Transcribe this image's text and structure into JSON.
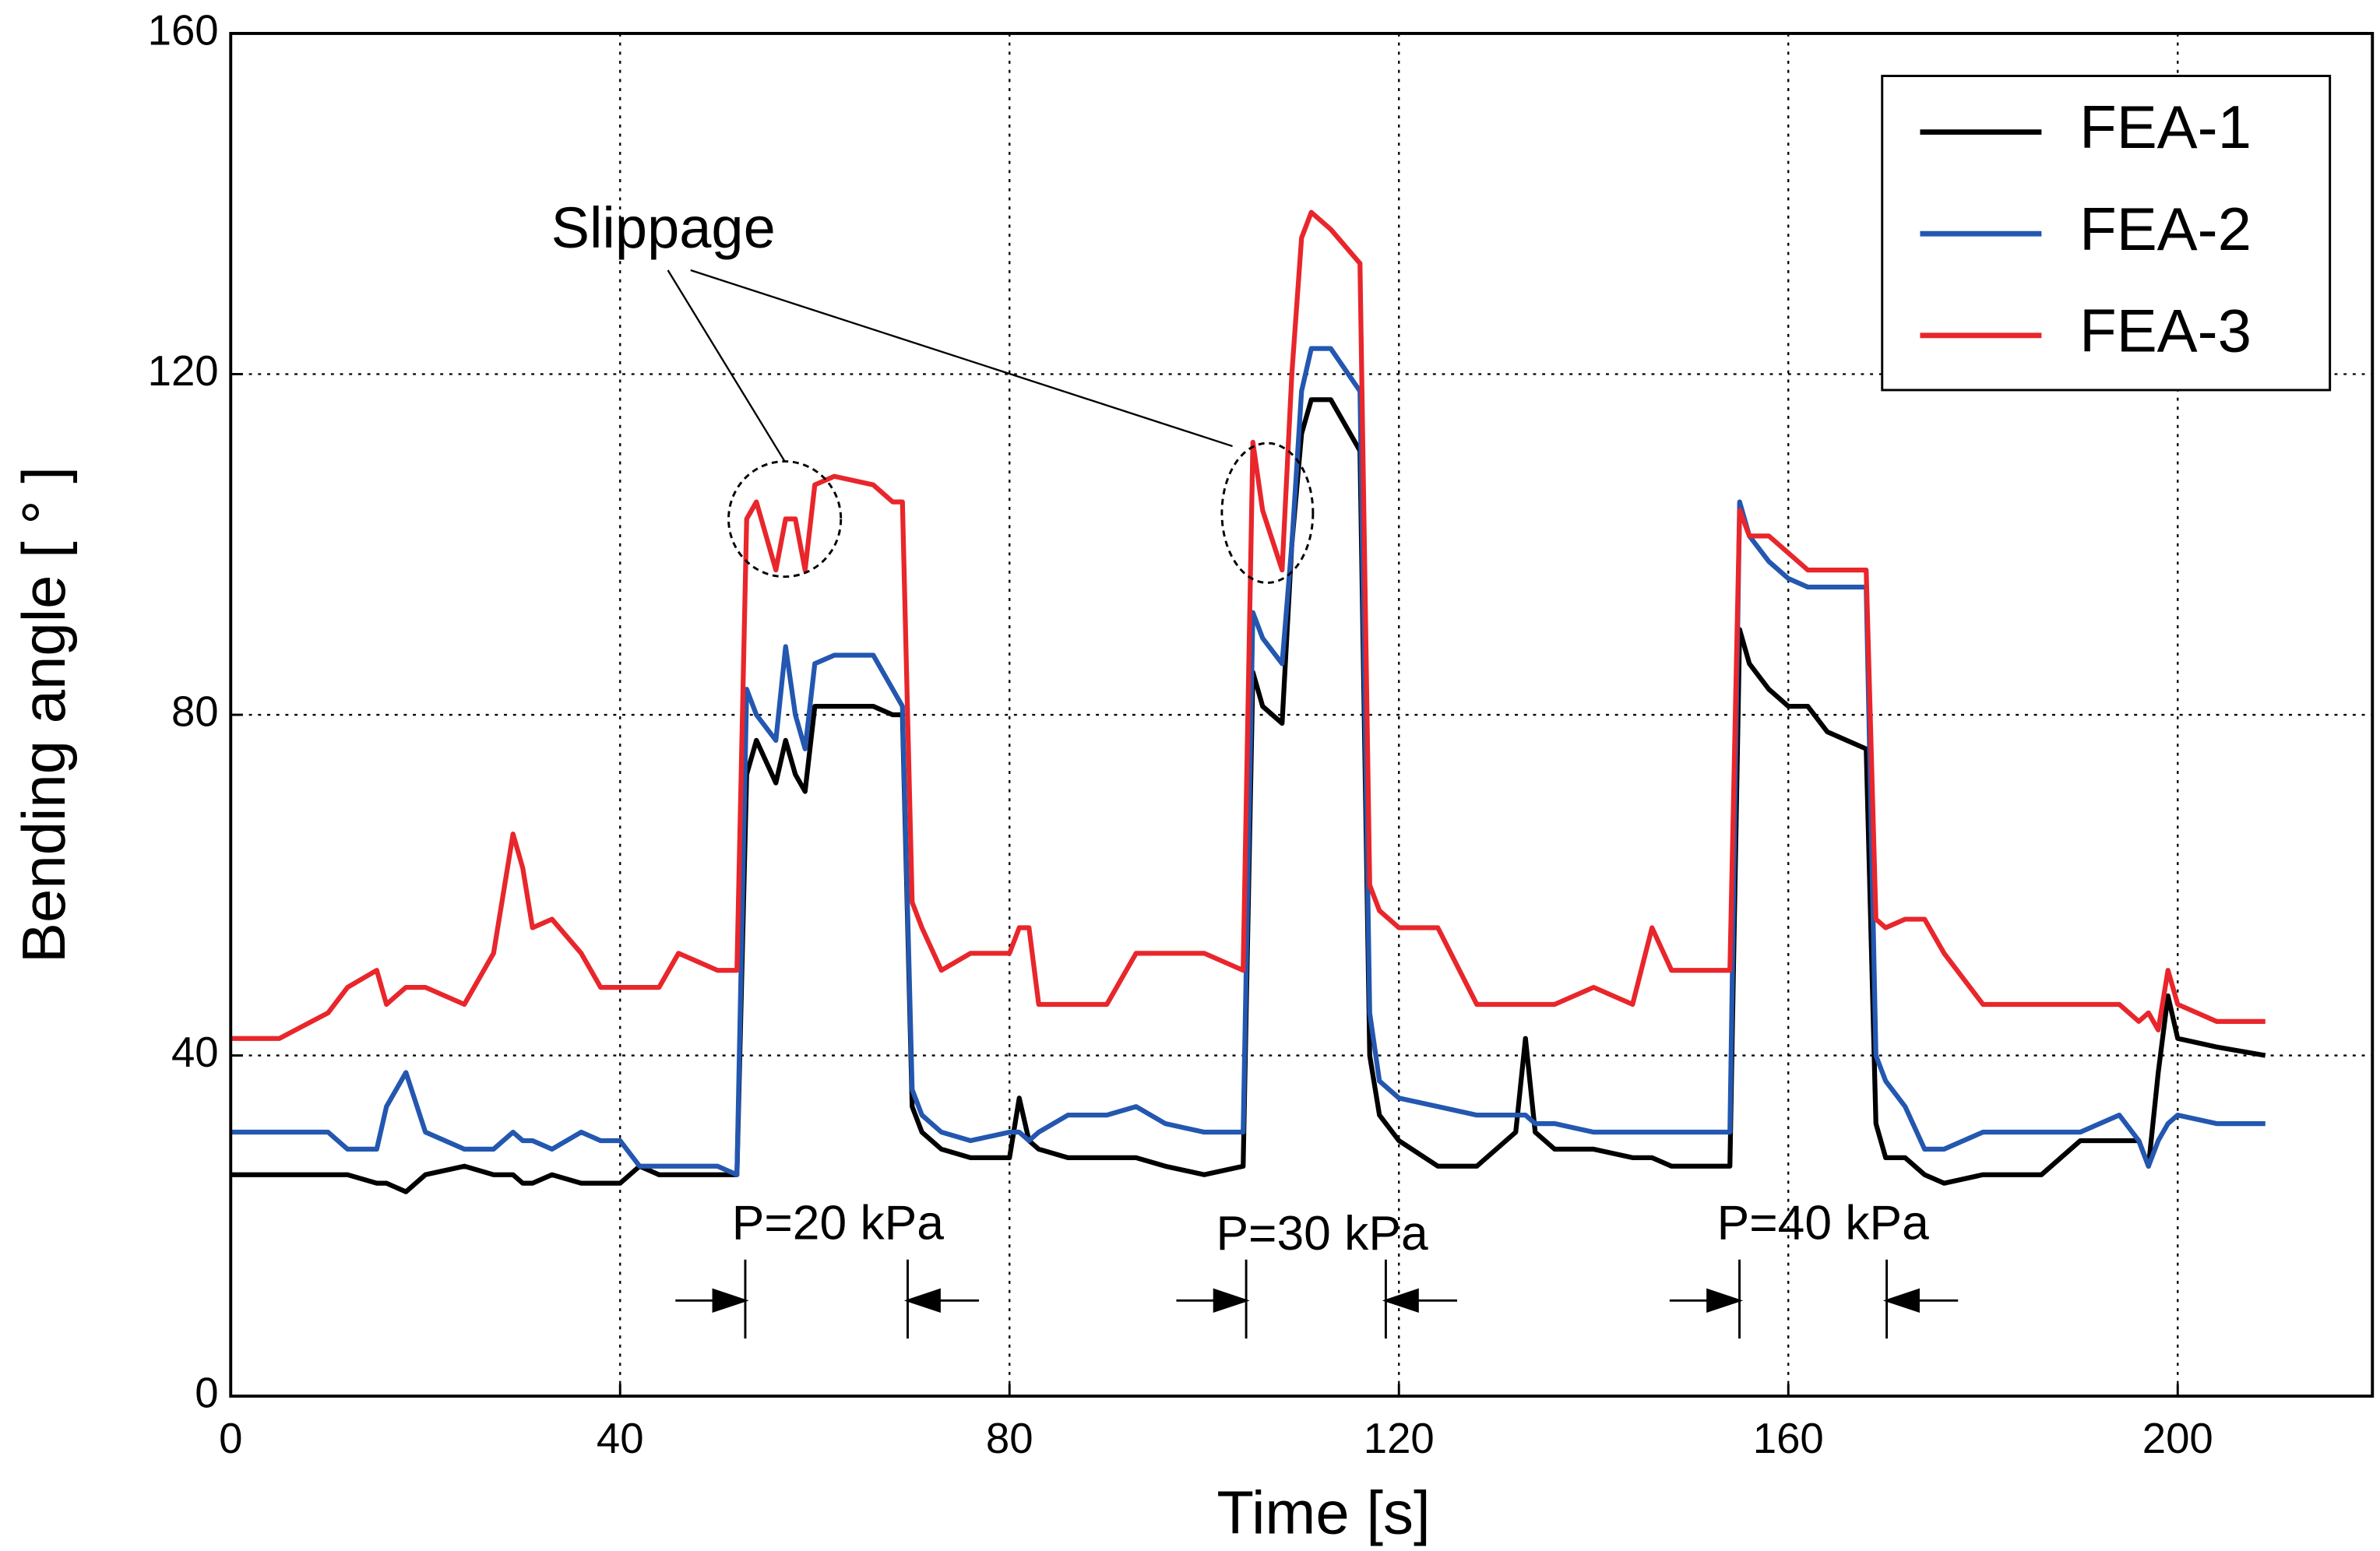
{
  "chart_data": {
    "type": "line",
    "xlabel": "Time [s]",
    "ylabel": "Bending angle [ ° ]",
    "xlim": [
      0,
      220
    ],
    "ylim": [
      0,
      160
    ],
    "xticks": [
      0,
      40,
      80,
      120,
      160,
      200
    ],
    "yticks": [
      0,
      40,
      80,
      120,
      160
    ],
    "grid": true,
    "legend": "upper right",
    "annotations": [
      "Slippage",
      "P=20 kPa",
      "P=30 kPa",
      "P=40 kPa"
    ],
    "x": [
      0,
      5,
      10,
      12,
      15,
      16,
      18,
      20,
      24,
      27,
      29,
      30,
      31,
      33,
      36,
      38,
      40,
      42,
      44,
      46,
      50,
      52,
      53,
      54,
      56,
      57,
      58,
      59,
      60,
      62,
      66,
      68,
      69,
      70,
      71,
      73,
      76,
      80,
      81,
      82,
      83,
      86,
      90,
      93,
      96,
      100,
      104,
      105,
      106,
      108,
      109,
      110,
      111,
      113,
      116,
      117,
      118,
      120,
      124,
      128,
      132,
      133,
      134,
      136,
      140,
      144,
      146,
      148,
      152,
      154,
      155,
      156,
      158,
      160,
      162,
      164,
      166,
      168,
      169,
      170,
      172,
      174,
      176,
      180,
      186,
      190,
      194,
      196,
      197,
      198,
      199,
      200,
      204,
      209
    ],
    "series": [
      {
        "name": "FEA-1",
        "color": "#000000",
        "values": [
          26,
          26,
          26,
          26,
          25,
          25,
          24,
          26,
          27,
          26,
          26,
          25,
          25,
          26,
          25,
          25,
          25,
          27,
          26,
          26,
          26,
          26,
          73,
          77,
          72,
          77,
          73,
          71,
          81,
          81,
          81,
          80,
          80,
          34,
          31,
          29,
          28,
          28,
          35,
          30,
          29,
          28,
          28,
          28,
          27,
          26,
          27,
          85,
          81,
          79,
          100,
          113,
          117,
          117,
          111,
          40,
          33,
          30,
          27,
          27,
          31,
          42,
          31,
          29,
          29,
          28,
          28,
          27,
          27,
          27,
          90,
          86,
          83,
          81,
          81,
          78,
          77,
          76,
          32,
          28,
          28,
          26,
          25,
          26,
          26,
          30,
          30,
          30,
          27,
          38,
          47,
          42,
          41,
          40
        ]
      },
      {
        "name": "FEA-2",
        "color": "#2357b0",
        "values": [
          31,
          31,
          31,
          29,
          29,
          34,
          38,
          31,
          29,
          29,
          31,
          30,
          30,
          29,
          31,
          30,
          30,
          27,
          27,
          27,
          27,
          26,
          83,
          80,
          77,
          88,
          80,
          76,
          86,
          87,
          87,
          83,
          81,
          36,
          33,
          31,
          30,
          31,
          31,
          30,
          31,
          33,
          33,
          34,
          32,
          31,
          31,
          92,
          89,
          86,
          100,
          118,
          123,
          123,
          118,
          45,
          37,
          35,
          34,
          33,
          33,
          33,
          32,
          32,
          31,
          31,
          31,
          31,
          31,
          31,
          105,
          101,
          98,
          96,
          95,
          95,
          95,
          95,
          40,
          37,
          34,
          29,
          29,
          31,
          31,
          31,
          33,
          30,
          27,
          30,
          32,
          33,
          32,
          32
        ]
      },
      {
        "name": "FEA-3",
        "color": "#e8262b",
        "values": [
          42,
          42,
          45,
          48,
          50,
          46,
          48,
          48,
          46,
          52,
          66,
          62,
          55,
          56,
          52,
          48,
          48,
          48,
          48,
          52,
          50,
          50,
          103,
          105,
          97,
          103,
          103,
          97,
          107,
          108,
          107,
          105,
          105,
          58,
          55,
          50,
          52,
          52,
          55,
          55,
          46,
          46,
          46,
          52,
          52,
          52,
          50,
          112,
          104,
          97,
          120,
          136,
          139,
          137,
          133,
          60,
          57,
          55,
          55,
          46,
          46,
          46,
          46,
          46,
          48,
          46,
          55,
          50,
          50,
          50,
          104,
          101,
          101,
          99,
          97,
          97,
          97,
          97,
          56,
          55,
          56,
          56,
          52,
          46,
          46,
          46,
          46,
          44,
          45,
          43,
          50,
          46,
          44,
          44
        ]
      }
    ]
  }
}
